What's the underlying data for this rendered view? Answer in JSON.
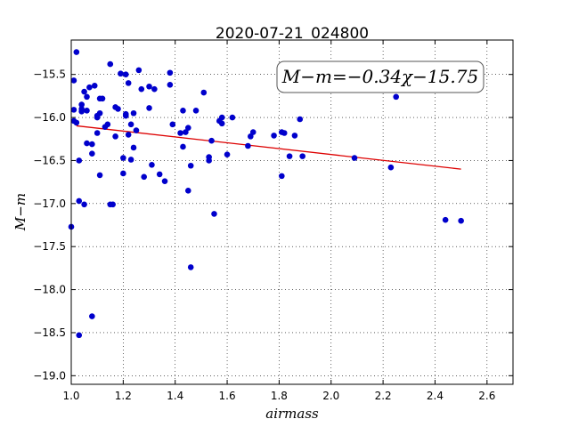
{
  "chart_data": {
    "type": "scatter",
    "title": "2020-07-21_024800",
    "xlabel": "airmass",
    "ylabel": "M−m",
    "xlim": [
      1.0,
      2.7
    ],
    "ylim": [
      -19.1,
      -15.1
    ],
    "y_inverted": true,
    "grid": true,
    "x_ticks": [
      1.0,
      1.2,
      1.4,
      1.6,
      1.8,
      2.0,
      2.2,
      2.4,
      2.6
    ],
    "x_tick_labels": [
      "1.0",
      "1.2",
      "1.4",
      "1.6",
      "1.8",
      "2.0",
      "2.2",
      "2.4",
      "2.6"
    ],
    "y_ticks": [
      -15.5,
      -16.0,
      -16.5,
      -17.0,
      -17.5,
      -18.0,
      -18.5,
      -19.0
    ],
    "y_tick_labels": [
      "−15.5",
      "−16.0",
      "−16.5",
      "−17.0",
      "−17.5",
      "−18.0",
      "−18.5",
      "−19.0"
    ],
    "point_color": "#0000cc",
    "line_color": "#dd0000",
    "annotation": "M−m=−0.34χ−15.75",
    "annotation_placement": "top-right",
    "fit": {
      "slope": -0.34,
      "intercept": -15.75,
      "x_start": 1.02,
      "x_end": 2.5
    },
    "points": [
      [
        1.0,
        -17.27
      ],
      [
        1.01,
        -15.91
      ],
      [
        1.01,
        -16.04
      ],
      [
        1.01,
        -15.57
      ],
      [
        1.02,
        -15.24
      ],
      [
        1.02,
        -16.06
      ],
      [
        1.03,
        -16.5
      ],
      [
        1.03,
        -16.97
      ],
      [
        1.03,
        -18.53
      ],
      [
        1.04,
        -15.9
      ],
      [
        1.04,
        -15.85
      ],
      [
        1.04,
        -15.93
      ],
      [
        1.05,
        -15.7
      ],
      [
        1.05,
        -17.01
      ],
      [
        1.06,
        -15.76
      ],
      [
        1.06,
        -15.92
      ],
      [
        1.06,
        -16.3
      ],
      [
        1.07,
        -15.65
      ],
      [
        1.08,
        -16.42
      ],
      [
        1.08,
        -16.31
      ],
      [
        1.08,
        -18.31
      ],
      [
        1.09,
        -15.63
      ],
      [
        1.1,
        -16.0
      ],
      [
        1.1,
        -16.18
      ],
      [
        1.1,
        -15.98
      ],
      [
        1.11,
        -15.95
      ],
      [
        1.11,
        -16.67
      ],
      [
        1.11,
        -15.78
      ],
      [
        1.12,
        -15.78
      ],
      [
        1.13,
        -16.11
      ],
      [
        1.14,
        -16.08
      ],
      [
        1.15,
        -15.38
      ],
      [
        1.15,
        -17.01
      ],
      [
        1.16,
        -17.01
      ],
      [
        1.17,
        -15.88
      ],
      [
        1.17,
        -16.22
      ],
      [
        1.18,
        -15.9
      ],
      [
        1.19,
        -15.49
      ],
      [
        1.2,
        -16.65
      ],
      [
        1.2,
        -16.47
      ],
      [
        1.21,
        -15.96
      ],
      [
        1.21,
        -15.5
      ],
      [
        1.21,
        -15.98
      ],
      [
        1.22,
        -16.2
      ],
      [
        1.22,
        -15.6
      ],
      [
        1.23,
        -16.49
      ],
      [
        1.23,
        -16.08
      ],
      [
        1.24,
        -16.35
      ],
      [
        1.24,
        -15.95
      ],
      [
        1.25,
        -16.15
      ],
      [
        1.26,
        -15.45
      ],
      [
        1.27,
        -15.67
      ],
      [
        1.28,
        -16.69
      ],
      [
        1.3,
        -15.89
      ],
      [
        1.3,
        -15.64
      ],
      [
        1.31,
        -16.55
      ],
      [
        1.32,
        -15.67
      ],
      [
        1.34,
        -16.66
      ],
      [
        1.36,
        -16.74
      ],
      [
        1.38,
        -15.62
      ],
      [
        1.38,
        -15.48
      ],
      [
        1.39,
        -16.08
      ],
      [
        1.42,
        -16.18
      ],
      [
        1.43,
        -16.34
      ],
      [
        1.43,
        -15.92
      ],
      [
        1.44,
        -16.17
      ],
      [
        1.45,
        -16.85
      ],
      [
        1.45,
        -16.12
      ],
      [
        1.46,
        -16.56
      ],
      [
        1.46,
        -17.74
      ],
      [
        1.48,
        -15.92
      ],
      [
        1.51,
        -15.71
      ],
      [
        1.53,
        -16.46
      ],
      [
        1.53,
        -16.5
      ],
      [
        1.54,
        -16.27
      ],
      [
        1.55,
        -17.12
      ],
      [
        1.57,
        -16.04
      ],
      [
        1.58,
        -16.07
      ],
      [
        1.58,
        -16.0
      ],
      [
        1.6,
        -16.43
      ],
      [
        1.62,
        -16.0
      ],
      [
        1.68,
        -16.33
      ],
      [
        1.69,
        -16.22
      ],
      [
        1.7,
        -16.17
      ],
      [
        1.78,
        -16.21
      ],
      [
        1.81,
        -16.68
      ],
      [
        1.81,
        -16.17
      ],
      [
        1.82,
        -16.18
      ],
      [
        1.84,
        -16.45
      ],
      [
        1.86,
        -16.21
      ],
      [
        1.88,
        -16.02
      ],
      [
        1.89,
        -16.45
      ],
      [
        2.09,
        -16.47
      ],
      [
        2.23,
        -16.58
      ],
      [
        2.25,
        -15.76
      ],
      [
        2.44,
        -17.19
      ],
      [
        2.5,
        -17.2
      ]
    ]
  }
}
